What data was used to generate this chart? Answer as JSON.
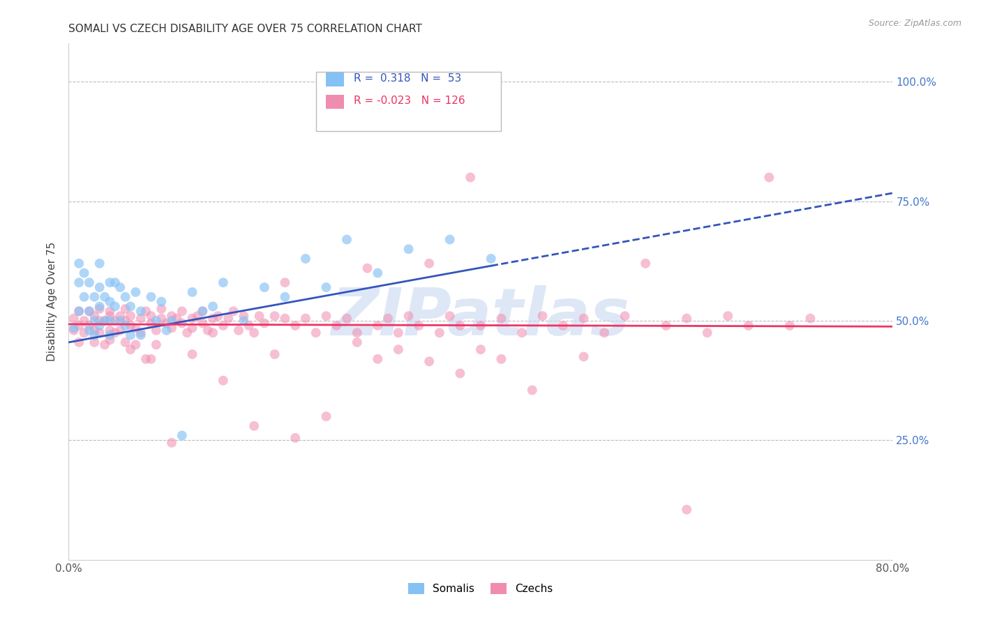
{
  "title": "SOMALI VS CZECH DISABILITY AGE OVER 75 CORRELATION CHART",
  "source": "Source: ZipAtlas.com",
  "ylabel": "Disability Age Over 75",
  "ytick_labels": [
    "100.0%",
    "75.0%",
    "50.0%",
    "25.0%"
  ],
  "ytick_values": [
    1.0,
    0.75,
    0.5,
    0.25
  ],
  "xlim": [
    0.0,
    0.8
  ],
  "ylim": [
    0.0,
    1.08
  ],
  "somali_R": 0.318,
  "somali_N": 53,
  "czech_R": -0.023,
  "czech_N": 126,
  "somali_color": "#85C1F5",
  "czech_color": "#F08CB0",
  "trend_somali_color": "#3355BB",
  "trend_czech_color": "#EE3366",
  "watermark": "ZIPatlas",
  "watermark_color": "#C8D8F0",
  "somali_scatter_x": [
    0.005,
    0.01,
    0.01,
    0.01,
    0.015,
    0.015,
    0.02,
    0.02,
    0.02,
    0.025,
    0.025,
    0.025,
    0.03,
    0.03,
    0.03,
    0.03,
    0.035,
    0.035,
    0.04,
    0.04,
    0.04,
    0.04,
    0.045,
    0.045,
    0.05,
    0.05,
    0.055,
    0.055,
    0.06,
    0.06,
    0.065,
    0.07,
    0.07,
    0.08,
    0.085,
    0.09,
    0.095,
    0.1,
    0.11,
    0.12,
    0.13,
    0.14,
    0.15,
    0.17,
    0.19,
    0.21,
    0.23,
    0.25,
    0.27,
    0.3,
    0.33,
    0.37,
    0.41
  ],
  "somali_scatter_y": [
    0.485,
    0.62,
    0.58,
    0.52,
    0.6,
    0.55,
    0.58,
    0.52,
    0.48,
    0.55,
    0.5,
    0.47,
    0.62,
    0.57,
    0.53,
    0.49,
    0.55,
    0.5,
    0.58,
    0.54,
    0.5,
    0.47,
    0.58,
    0.53,
    0.57,
    0.5,
    0.55,
    0.49,
    0.53,
    0.47,
    0.56,
    0.52,
    0.47,
    0.55,
    0.5,
    0.54,
    0.48,
    0.5,
    0.26,
    0.56,
    0.52,
    0.53,
    0.58,
    0.5,
    0.57,
    0.55,
    0.63,
    0.57,
    0.67,
    0.6,
    0.65,
    0.67,
    0.63
  ],
  "czech_scatter_x": [
    0.005,
    0.005,
    0.01,
    0.01,
    0.01,
    0.015,
    0.015,
    0.02,
    0.02,
    0.025,
    0.025,
    0.03,
    0.03,
    0.03,
    0.035,
    0.04,
    0.04,
    0.04,
    0.045,
    0.045,
    0.05,
    0.05,
    0.055,
    0.055,
    0.06,
    0.06,
    0.065,
    0.07,
    0.07,
    0.075,
    0.08,
    0.08,
    0.085,
    0.09,
    0.09,
    0.095,
    0.1,
    0.1,
    0.105,
    0.11,
    0.11,
    0.115,
    0.12,
    0.12,
    0.125,
    0.13,
    0.13,
    0.135,
    0.14,
    0.14,
    0.145,
    0.15,
    0.155,
    0.16,
    0.165,
    0.17,
    0.175,
    0.18,
    0.185,
    0.19,
    0.2,
    0.21,
    0.21,
    0.22,
    0.23,
    0.24,
    0.25,
    0.26,
    0.27,
    0.28,
    0.29,
    0.3,
    0.31,
    0.32,
    0.33,
    0.34,
    0.35,
    0.36,
    0.37,
    0.38,
    0.39,
    0.4,
    0.42,
    0.44,
    0.46,
    0.48,
    0.5,
    0.52,
    0.54,
    0.56,
    0.58,
    0.6,
    0.62,
    0.64,
    0.66,
    0.68,
    0.7,
    0.72,
    0.25,
    0.1,
    0.18,
    0.3,
    0.4,
    0.22,
    0.15,
    0.35,
    0.45,
    0.12,
    0.2,
    0.28,
    0.38,
    0.5,
    0.6,
    0.42,
    0.32,
    0.08,
    0.06,
    0.04,
    0.055,
    0.035,
    0.025,
    0.065,
    0.075,
    0.085
  ],
  "czech_scatter_y": [
    0.505,
    0.48,
    0.52,
    0.49,
    0.455,
    0.5,
    0.475,
    0.52,
    0.49,
    0.51,
    0.48,
    0.5,
    0.475,
    0.525,
    0.5,
    0.51,
    0.48,
    0.52,
    0.5,
    0.475,
    0.51,
    0.48,
    0.5,
    0.525,
    0.49,
    0.51,
    0.485,
    0.505,
    0.475,
    0.52,
    0.495,
    0.51,
    0.48,
    0.505,
    0.525,
    0.495,
    0.51,
    0.485,
    0.505,
    0.495,
    0.52,
    0.475,
    0.505,
    0.485,
    0.51,
    0.495,
    0.52,
    0.48,
    0.505,
    0.475,
    0.51,
    0.49,
    0.505,
    0.52,
    0.48,
    0.51,
    0.49,
    0.475,
    0.51,
    0.495,
    0.51,
    0.58,
    0.505,
    0.49,
    0.505,
    0.475,
    0.51,
    0.49,
    0.505,
    0.475,
    0.61,
    0.49,
    0.505,
    0.475,
    0.51,
    0.49,
    0.62,
    0.475,
    0.51,
    0.49,
    0.8,
    0.49,
    0.505,
    0.475,
    0.51,
    0.49,
    0.505,
    0.475,
    0.51,
    0.62,
    0.49,
    0.505,
    0.475,
    0.51,
    0.49,
    0.8,
    0.49,
    0.505,
    0.3,
    0.245,
    0.28,
    0.42,
    0.44,
    0.255,
    0.375,
    0.415,
    0.355,
    0.43,
    0.43,
    0.455,
    0.39,
    0.425,
    0.105,
    0.42,
    0.44,
    0.42,
    0.44,
    0.46,
    0.455,
    0.45,
    0.455,
    0.45,
    0.42,
    0.45
  ]
}
